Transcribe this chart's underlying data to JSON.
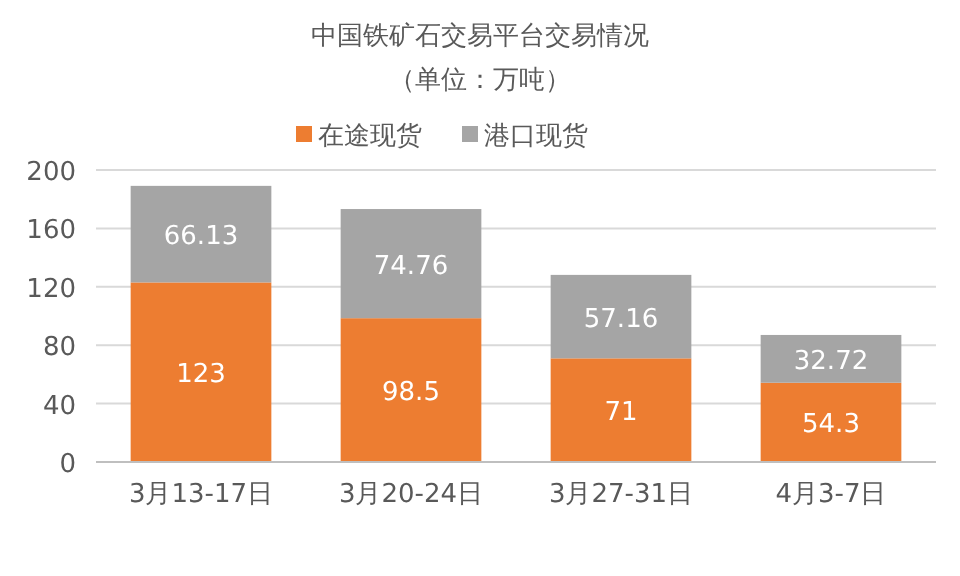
{
  "chart_data": {
    "type": "bar",
    "stacked": true,
    "title": "中国铁矿石交易平台交易情况",
    "subtitle": "（单位：万吨）",
    "categories": [
      "3月13-17日",
      "3月20-24日",
      "3月27-31日",
      "4月3-7日"
    ],
    "series": [
      {
        "name": "在途现货",
        "color": "#ed7d31",
        "values": [
          123,
          98.5,
          71,
          54.3
        ]
      },
      {
        "name": "港口现货",
        "color": "#a5a5a5",
        "values": [
          66.13,
          74.76,
          57.16,
          32.72
        ]
      }
    ],
    "ylim": [
      0,
      200
    ],
    "yticks": [
      0,
      40,
      80,
      120,
      160,
      200
    ],
    "grid": "y",
    "legend": "top",
    "data_labels": true
  }
}
